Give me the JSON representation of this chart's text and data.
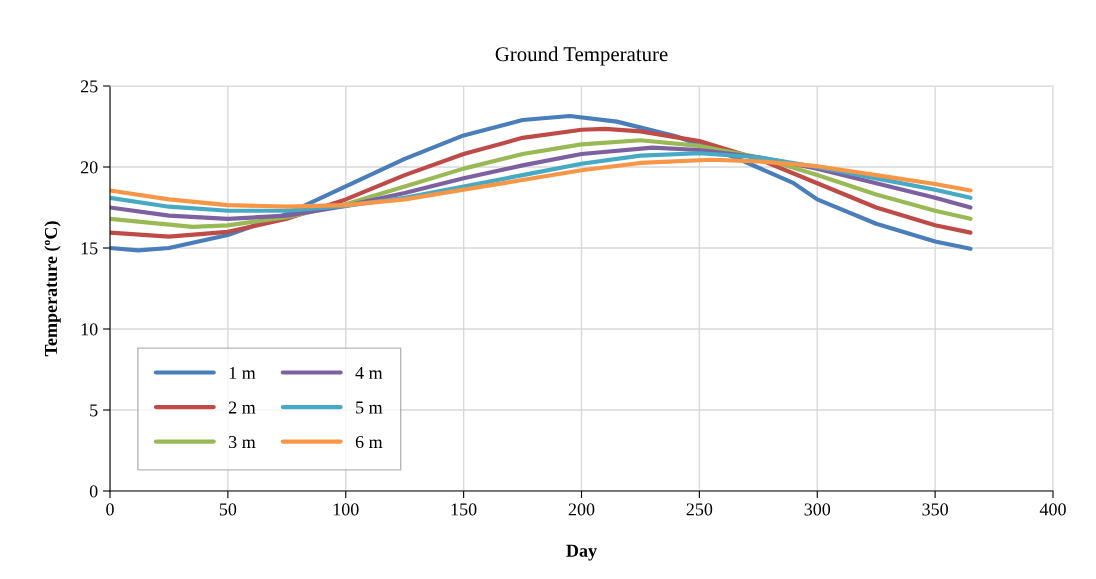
{
  "chart_data": {
    "type": "line",
    "title": "Ground Temperature",
    "xlabel": "Day",
    "ylabel": "Temperature (ºC)",
    "xlim": [
      0,
      400
    ],
    "xticks": [
      0,
      50,
      100,
      150,
      200,
      250,
      300,
      350,
      400
    ],
    "ylim": [
      0,
      25
    ],
    "yticks": [
      0,
      5,
      10,
      15,
      20,
      25
    ],
    "grid": true,
    "legend": "bottom left",
    "marker": "none",
    "line_style": "solid",
    "series": [
      {
        "name": "1 m",
        "color": "#4a7ebb",
        "x": [
          0,
          12,
          25,
          50,
          75,
          100,
          125,
          150,
          175,
          195,
          215,
          240,
          265,
          290,
          300,
          325,
          350,
          365
        ],
        "values": [
          15.0,
          14.85,
          15.0,
          15.8,
          17.1,
          18.8,
          20.5,
          21.95,
          22.9,
          23.15,
          22.8,
          21.9,
          20.6,
          19.0,
          18.0,
          16.5,
          15.4,
          14.95
        ]
      },
      {
        "name": "2 m",
        "color": "#be4b48",
        "x": [
          0,
          25,
          50,
          75,
          100,
          125,
          150,
          175,
          200,
          210,
          225,
          250,
          275,
          300,
          325,
          350,
          365
        ],
        "values": [
          15.95,
          15.7,
          16.0,
          16.8,
          18.0,
          19.5,
          20.8,
          21.8,
          22.3,
          22.35,
          22.2,
          21.6,
          20.5,
          19.0,
          17.5,
          16.4,
          15.95
        ]
      },
      {
        "name": "3 m",
        "color": "#98b954",
        "x": [
          0,
          35,
          50,
          75,
          100,
          125,
          150,
          175,
          200,
          225,
          250,
          275,
          300,
          325,
          350,
          365
        ],
        "values": [
          16.8,
          16.3,
          16.4,
          16.9,
          17.7,
          18.8,
          19.9,
          20.8,
          21.4,
          21.65,
          21.3,
          20.6,
          19.5,
          18.3,
          17.3,
          16.8
        ]
      },
      {
        "name": "4 m",
        "color": "#7d60a0",
        "x": [
          0,
          25,
          50,
          75,
          100,
          125,
          150,
          175,
          200,
          230,
          250,
          275,
          300,
          325,
          350,
          365
        ],
        "values": [
          17.5,
          17.0,
          16.8,
          17.0,
          17.6,
          18.4,
          19.3,
          20.1,
          20.8,
          21.2,
          21.05,
          20.6,
          19.9,
          19.0,
          18.1,
          17.5
        ]
      },
      {
        "name": "5 m",
        "color": "#46aac5",
        "x": [
          0,
          25,
          50,
          75,
          100,
          125,
          150,
          175,
          200,
          225,
          250,
          275,
          300,
          325,
          350,
          365
        ],
        "values": [
          18.1,
          17.55,
          17.3,
          17.3,
          17.6,
          18.1,
          18.8,
          19.5,
          20.2,
          20.7,
          20.85,
          20.6,
          20.0,
          19.3,
          18.6,
          18.1
        ]
      },
      {
        "name": "6 m",
        "color": "#f79646",
        "x": [
          0,
          25,
          50,
          75,
          100,
          125,
          150,
          175,
          200,
          225,
          255,
          275,
          300,
          325,
          350,
          365
        ],
        "values": [
          18.55,
          18.0,
          17.65,
          17.55,
          17.65,
          18.0,
          18.6,
          19.2,
          19.8,
          20.25,
          20.45,
          20.35,
          20.05,
          19.5,
          18.95,
          18.55
        ]
      }
    ]
  }
}
